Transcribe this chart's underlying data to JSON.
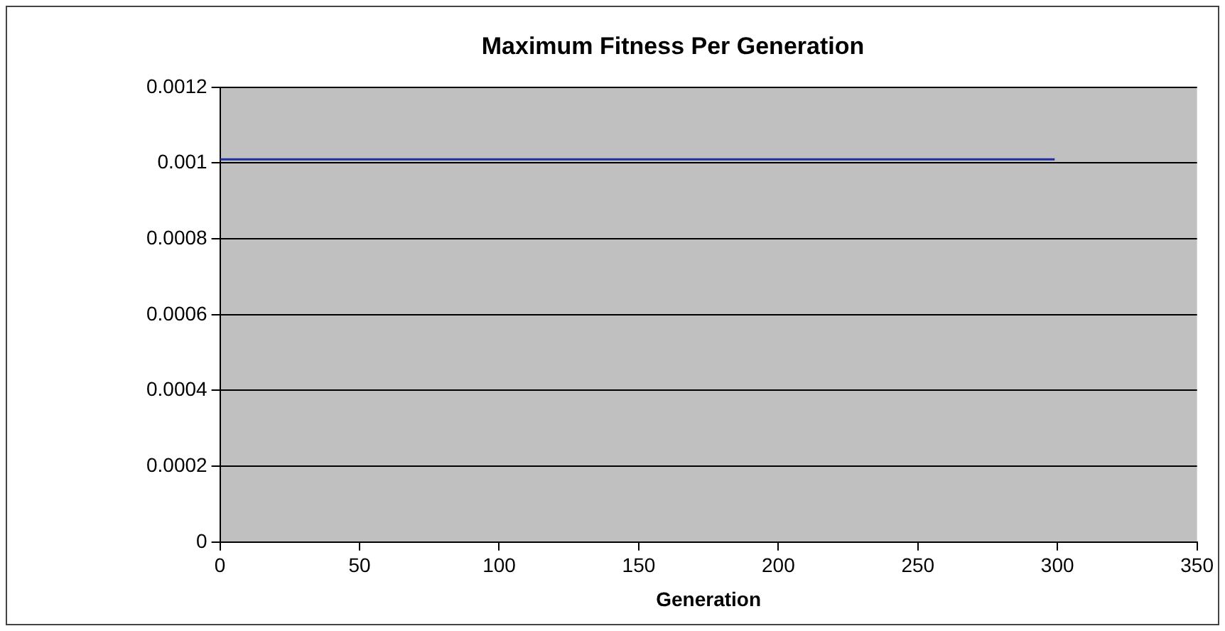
{
  "chart_data": {
    "type": "line",
    "title": "Maximum Fitness Per Generation",
    "xlabel": "Generation",
    "series": [
      {
        "color": "#1f2f9f",
        "x": [
          0,
          299
        ],
        "values": [
          0.00101,
          0.00101
        ]
      }
    ],
    "xlim": [
      0,
      350
    ],
    "xticks": [
      0,
      50,
      100,
      150,
      200,
      250,
      300,
      350
    ],
    "ylim": [
      0,
      0.0012
    ],
    "yticks": [
      0,
      0.0002,
      0.0004,
      0.0006,
      0.0008,
      0.001,
      0.0012
    ],
    "grid": "y",
    "legend": false,
    "marker": "none",
    "line_style": "solid"
  }
}
